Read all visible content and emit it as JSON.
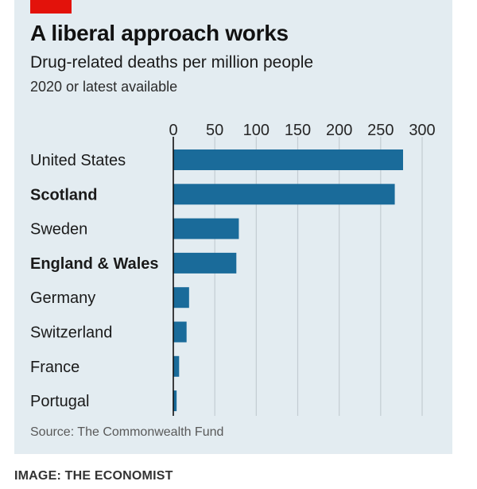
{
  "chart_data": {
    "type": "bar",
    "orientation": "horizontal",
    "title": "A liberal approach works",
    "subtitle": "Drug-related deaths per million people",
    "period": "2020 or latest available",
    "categories": [
      "United States",
      "Scotland",
      "Sweden",
      "England & Wales",
      "Germany",
      "Switzerland",
      "France",
      "Portugal"
    ],
    "highlighted": [
      "Scotland",
      "England & Wales"
    ],
    "values": [
      277,
      267,
      79,
      76,
      19,
      16,
      7,
      4
    ],
    "xlim": [
      0,
      300
    ],
    "xticks": [
      "0",
      "50",
      "100",
      "150",
      "200",
      "250",
      "300"
    ],
    "xlabel": "",
    "ylabel": "",
    "grid": true,
    "bar_color": "#1a6b9a",
    "source": "Source: The Commonwealth Fund"
  },
  "credit": "IMAGE: THE ECONOMIST",
  "colors": {
    "panel_background": "#e3ecf1",
    "accent_tag": "#e3120b",
    "bar": "#1a6b9a",
    "gridline": "#c3ccd2",
    "axis": "#111111"
  }
}
